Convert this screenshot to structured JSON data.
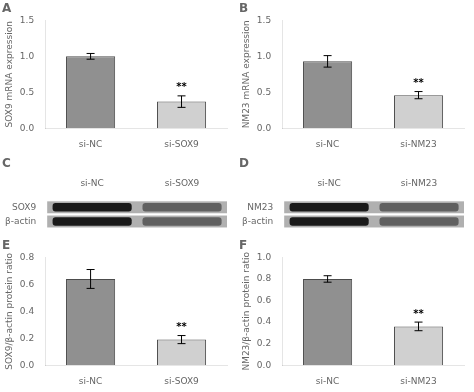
{
  "chart_data": [
    {
      "type": "bar",
      "title": "A",
      "ylabel": "SOX9 mRNA expression",
      "categories": [
        "si-NC",
        "si-SOX9"
      ],
      "values": [
        1.0,
        0.37
      ],
      "errors": [
        0.04,
        0.08
      ],
      "colors": [
        "#909090",
        "#d0d0d0"
      ],
      "ylim": [
        0,
        1.5
      ],
      "yticks": [
        {
          "value": 0,
          "label": "0.0"
        },
        0.5,
        {
          "value": 1,
          "label": "1.0"
        },
        1.5
      ],
      "grid": false,
      "annotations": [
        {
          "text": "**",
          "x": "si-SOX9"
        }
      ]
    },
    {
      "type": "bar",
      "title": "B",
      "ylabel": "NM23 mRNA expression",
      "categories": [
        "si-NC",
        "si-NM23"
      ],
      "values": [
        0.93,
        0.46
      ],
      "errors": [
        0.08,
        0.05
      ],
      "colors": [
        "#909090",
        "#d0d0d0"
      ],
      "ylim": [
        0,
        1.5
      ],
      "yticks": [
        {
          "value": 0,
          "label": "0.0"
        },
        0.5,
        {
          "value": 1,
          "label": "1.0"
        },
        1.5
      ],
      "grid": false,
      "annotations": [
        {
          "text": "**",
          "x": "si-NM23"
        }
      ]
    },
    {
      "type": "blot",
      "title": "C",
      "categories": [
        "si-NC",
        "si-SOX9"
      ],
      "color": "#b0b0b0",
      "series": [
        {
          "name": "SOX9",
          "colors": [
            "#1a1a1a",
            "#606060"
          ]
        },
        {
          "name": "β-actin",
          "colors": [
            "#1a1a1a",
            "#606060"
          ]
        }
      ]
    },
    {
      "type": "blot",
      "title": "D",
      "categories": [
        "si-NC",
        "si-NM23"
      ],
      "color": "#b0b0b0",
      "series": [
        {
          "name": "NM23",
          "colors": [
            "#1a1a1a",
            "#606060"
          ]
        },
        {
          "name": "β-actin",
          "colors": [
            "#1a1a1a",
            "#606060"
          ]
        }
      ]
    },
    {
      "type": "bar",
      "title": "E",
      "ylabel": "SOX9/β-actin protein ratio",
      "categories": [
        "si-NC",
        "si-SOX9"
      ],
      "values": [
        0.64,
        0.19
      ],
      "errors": [
        0.07,
        0.03
      ],
      "colors": [
        "#909090",
        "#d0d0d0"
      ],
      "ylim": [
        0,
        0.8
      ],
      "yticks": [
        {
          "value": 0,
          "label": "0.0"
        },
        0.2,
        0.4,
        0.6,
        0.8
      ],
      "grid": false,
      "annotations": [
        {
          "text": "**",
          "x": "si-SOX9"
        }
      ]
    },
    {
      "type": "bar",
      "title": "F",
      "ylabel": "NM23/β-actin protein ratio",
      "categories": [
        "si-NC",
        "si-NM23"
      ],
      "values": [
        0.8,
        0.36
      ],
      "errors": [
        0.03,
        0.04
      ],
      "colors": [
        "#909090",
        "#d0d0d0"
      ],
      "ylim": [
        0,
        1.0
      ],
      "yticks": [
        {
          "value": 0,
          "label": "0.0"
        },
        0.2,
        0.4,
        0.6,
        0.8,
        {
          "value": 1,
          "label": "1.0"
        }
      ],
      "grid": false,
      "annotations": [
        {
          "text": "**",
          "x": "si-NM23"
        }
      ]
    }
  ]
}
